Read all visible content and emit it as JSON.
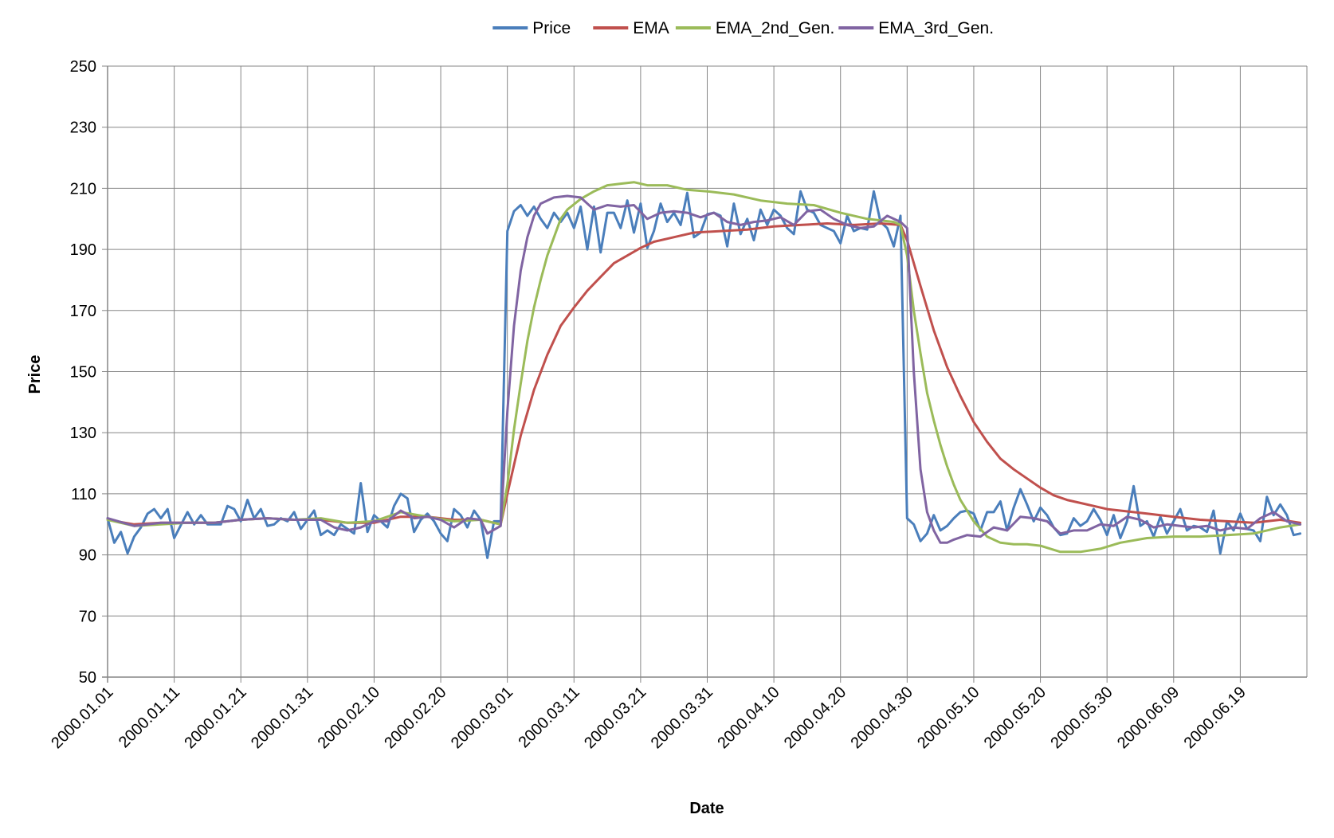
{
  "chart_data": {
    "type": "line",
    "title": "",
    "xlabel": "Date",
    "ylabel": "Price",
    "ylim": [
      50,
      250
    ],
    "y_ticks": [
      50,
      70,
      90,
      110,
      130,
      150,
      170,
      190,
      210,
      230,
      250
    ],
    "x_tick_labels": [
      "2000.01.01",
      "2000.01.11",
      "2000.01.21",
      "2000.01.31",
      "2000.02.10",
      "2000.02.20",
      "2000.03.01",
      "2000.03.11",
      "2000.03.21",
      "2000.03.31",
      "2000.04.10",
      "2000.04.20",
      "2000.04.30",
      "2000.05.10",
      "2000.05.20",
      "2000.05.30",
      "2000.06.09",
      "2000.06.19"
    ],
    "x_start": "2000.01.01",
    "x_end": "2000.06.28",
    "grid": true,
    "legend_position": "top",
    "series": [
      {
        "name": "Price",
        "color": "#4a7ebb",
        "x": [
          "2000.01.01",
          "2000.01.02",
          "2000.01.03",
          "2000.01.04",
          "2000.01.05",
          "2000.01.06",
          "2000.01.07",
          "2000.01.08",
          "2000.01.09",
          "2000.01.10",
          "2000.01.11",
          "2000.01.13",
          "2000.01.14",
          "2000.01.15",
          "2000.01.16",
          "2000.01.17",
          "2000.01.18",
          "2000.01.19",
          "2000.01.20",
          "2000.01.21",
          "2000.01.22",
          "2000.01.23",
          "2000.01.24",
          "2000.01.25",
          "2000.01.26",
          "2000.01.27",
          "2000.01.28",
          "2000.01.29",
          "2000.01.30",
          "2000.01.31",
          "2000.02.01",
          "2000.02.02",
          "2000.02.03",
          "2000.02.04",
          "2000.02.05",
          "2000.02.06",
          "2000.02.07",
          "2000.02.08",
          "2000.02.09",
          "2000.02.10",
          "2000.02.11",
          "2000.02.12",
          "2000.02.13",
          "2000.02.14",
          "2000.02.15",
          "2000.02.16",
          "2000.02.17",
          "2000.02.18",
          "2000.02.19",
          "2000.02.20",
          "2000.02.21",
          "2000.02.22",
          "2000.02.23",
          "2000.02.24",
          "2000.02.25",
          "2000.02.26",
          "2000.02.27",
          "2000.02.28",
          "2000.02.29",
          "2000.03.01",
          "2000.03.02",
          "2000.03.03",
          "2000.03.04",
          "2000.03.05",
          "2000.03.06",
          "2000.03.07",
          "2000.03.08",
          "2000.03.09",
          "2000.03.10",
          "2000.03.11",
          "2000.03.12",
          "2000.03.13",
          "2000.03.14",
          "2000.03.15",
          "2000.03.16",
          "2000.03.17",
          "2000.03.18",
          "2000.03.19",
          "2000.03.20",
          "2000.03.21",
          "2000.03.22",
          "2000.03.23",
          "2000.03.24",
          "2000.03.25",
          "2000.03.26",
          "2000.03.27",
          "2000.03.28",
          "2000.03.29",
          "2000.03.30",
          "2000.03.31",
          "2000.04.01",
          "2000.04.02",
          "2000.04.03",
          "2000.04.04",
          "2000.04.05",
          "2000.04.06",
          "2000.04.07",
          "2000.04.08",
          "2000.04.09",
          "2000.04.10",
          "2000.04.11",
          "2000.04.12",
          "2000.04.13",
          "2000.04.14",
          "2000.04.15",
          "2000.04.16",
          "2000.04.17",
          "2000.04.18",
          "2000.04.19",
          "2000.04.20",
          "2000.04.21",
          "2000.04.22",
          "2000.04.23",
          "2000.04.24",
          "2000.04.25",
          "2000.04.26",
          "2000.04.27",
          "2000.04.28",
          "2000.04.29",
          "2000.04.30",
          "2000.05.01",
          "2000.05.02",
          "2000.05.03",
          "2000.05.04",
          "2000.05.05",
          "2000.05.06",
          "2000.05.07",
          "2000.05.08",
          "2000.05.09",
          "2000.05.10",
          "2000.05.11",
          "2000.05.12",
          "2000.05.13",
          "2000.05.14",
          "2000.05.15",
          "2000.05.16",
          "2000.05.17",
          "2000.05.18",
          "2000.05.19",
          "2000.05.20",
          "2000.05.21",
          "2000.05.22",
          "2000.05.23",
          "2000.05.24",
          "2000.05.25",
          "2000.05.26",
          "2000.05.27",
          "2000.05.28",
          "2000.05.29",
          "2000.05.30",
          "2000.05.31",
          "2000.06.01",
          "2000.06.02",
          "2000.06.03",
          "2000.06.04",
          "2000.06.05",
          "2000.06.06",
          "2000.06.07",
          "2000.06.08",
          "2000.06.09",
          "2000.06.10",
          "2000.06.11",
          "2000.06.12",
          "2000.06.13",
          "2000.06.14",
          "2000.06.15",
          "2000.06.16",
          "2000.06.17",
          "2000.06.18",
          "2000.06.19",
          "2000.06.20",
          "2000.06.21",
          "2000.06.22",
          "2000.06.23",
          "2000.06.24",
          "2000.06.25",
          "2000.06.26",
          "2000.06.27",
          "2000.06.28"
        ],
        "values": [
          102,
          94,
          97.5,
          90.5,
          96,
          99,
          103.5,
          105,
          102,
          105,
          95.5,
          104,
          100,
          103,
          100,
          100,
          100,
          106,
          105,
          101,
          108,
          102,
          105,
          99.5,
          100,
          102,
          101,
          104,
          98.5,
          101.5,
          104.5,
          96.5,
          98,
          96.5,
          100,
          98.5,
          97,
          113.5,
          97.5,
          103,
          101,
          99,
          106,
          110,
          108.5,
          97.5,
          101.5,
          103.5,
          101,
          97,
          94.5,
          105,
          103,
          99,
          104.5,
          101.5,
          89,
          101,
          101,
          196,
          202.5,
          204.5,
          201,
          204,
          200,
          197,
          202,
          199,
          202,
          197,
          204,
          190,
          204,
          189,
          202,
          202,
          197,
          206,
          195.5,
          205,
          190.5,
          196,
          205,
          199,
          202,
          198,
          208.5,
          194,
          195.5,
          201.5,
          202,
          201,
          191,
          205,
          195,
          200,
          193,
          203,
          198,
          203,
          201,
          197,
          195,
          209,
          203,
          202,
          198,
          197,
          196,
          192,
          201,
          196,
          197,
          196.5,
          209,
          199,
          197,
          191,
          201,
          102,
          100,
          94.5,
          97,
          103,
          98,
          99.5,
          102,
          104,
          104.5,
          103.5,
          98,
          104,
          104,
          107.5,
          98,
          105.5,
          111.5,
          106.5,
          101,
          105.5,
          103,
          99,
          96.5,
          97,
          102,
          99.5,
          101,
          105,
          101.5,
          96.5,
          103,
          95.5,
          101,
          112.5,
          99.5,
          101,
          96,
          102.5,
          97,
          101,
          105,
          98,
          99.5,
          99,
          97.5,
          104.5,
          90.5,
          101,
          98,
          103.5,
          98.5,
          98,
          94.5,
          109,
          103,
          106.5,
          103,
          96.5,
          97
        ]
      },
      {
        "name": "EMA",
        "color": "#c0504d",
        "x": [
          "2000.01.01",
          "2000.01.05",
          "2000.01.09",
          "2000.01.13",
          "2000.01.17",
          "2000.01.21",
          "2000.01.25",
          "2000.01.29",
          "2000.02.02",
          "2000.02.06",
          "2000.02.10",
          "2000.02.14",
          "2000.02.18",
          "2000.02.22",
          "2000.02.26",
          "2000.02.29",
          "2000.03.01",
          "2000.03.03",
          "2000.03.05",
          "2000.03.07",
          "2000.03.09",
          "2000.03.11",
          "2000.03.13",
          "2000.03.15",
          "2000.03.17",
          "2000.03.19",
          "2000.03.21",
          "2000.03.23",
          "2000.03.25",
          "2000.03.27",
          "2000.03.29",
          "2000.04.02",
          "2000.04.06",
          "2000.04.10",
          "2000.04.14",
          "2000.04.18",
          "2000.04.22",
          "2000.04.26",
          "2000.04.29",
          "2000.04.30",
          "2000.05.02",
          "2000.05.04",
          "2000.05.06",
          "2000.05.08",
          "2000.05.10",
          "2000.05.12",
          "2000.05.14",
          "2000.05.16",
          "2000.05.18",
          "2000.05.20",
          "2000.05.22",
          "2000.05.24",
          "2000.05.26",
          "2000.05.28",
          "2000.05.30",
          "2000.06.01",
          "2000.06.05",
          "2000.06.09",
          "2000.06.13",
          "2000.06.17",
          "2000.06.21",
          "2000.06.25",
          "2000.06.28"
        ],
        "values": [
          101.5,
          100,
          100.5,
          100.5,
          100.5,
          101.5,
          102,
          101.5,
          101.5,
          100.5,
          100.5,
          102.5,
          102.5,
          101.5,
          101.5,
          100,
          110,
          129,
          144,
          155.5,
          165,
          171,
          176.5,
          181,
          185.5,
          188,
          190.5,
          192.5,
          193.5,
          194.5,
          195.5,
          196,
          196.5,
          197.5,
          198,
          198.5,
          198,
          198.5,
          198,
          193,
          178,
          163.5,
          151.5,
          142,
          133.5,
          127,
          121.5,
          118,
          115,
          112,
          109.5,
          108,
          107,
          106,
          105,
          104.5,
          103.5,
          102.5,
          101.5,
          101,
          100.5,
          101.5,
          100.5
        ]
      },
      {
        "name": "EMA_2nd_Gen.",
        "color": "#9bbb59",
        "x": [
          "2000.01.01",
          "2000.01.05",
          "2000.01.09",
          "2000.01.13",
          "2000.01.17",
          "2000.01.21",
          "2000.01.25",
          "2000.01.29",
          "2000.02.02",
          "2000.02.06",
          "2000.02.10",
          "2000.02.14",
          "2000.02.18",
          "2000.02.22",
          "2000.02.26",
          "2000.02.29",
          "2000.03.01",
          "2000.03.02",
          "2000.03.03",
          "2000.03.04",
          "2000.03.05",
          "2000.03.06",
          "2000.03.07",
          "2000.03.08",
          "2000.03.09",
          "2000.03.10",
          "2000.03.12",
          "2000.03.14",
          "2000.03.16",
          "2000.03.18",
          "2000.03.20",
          "2000.03.22",
          "2000.03.25",
          "2000.03.28",
          "2000.03.31",
          "2000.04.04",
          "2000.04.08",
          "2000.04.12",
          "2000.04.16",
          "2000.04.20",
          "2000.04.24",
          "2000.04.28",
          "2000.04.29",
          "2000.04.30",
          "2000.05.01",
          "2000.05.02",
          "2000.05.03",
          "2000.05.04",
          "2000.05.05",
          "2000.05.06",
          "2000.05.07",
          "2000.05.08",
          "2000.05.10",
          "2000.05.12",
          "2000.05.14",
          "2000.05.16",
          "2000.05.18",
          "2000.05.20",
          "2000.05.23",
          "2000.05.26",
          "2000.05.29",
          "2000.06.01",
          "2000.06.05",
          "2000.06.09",
          "2000.06.13",
          "2000.06.17",
          "2000.06.21",
          "2000.06.25",
          "2000.06.28"
        ],
        "values": [
          101.5,
          99.5,
          100,
          100.5,
          100.5,
          101.5,
          102,
          101.5,
          102,
          100.5,
          101,
          104,
          102.5,
          101,
          101.5,
          100,
          113,
          131,
          146,
          160,
          171,
          180,
          188,
          194,
          200,
          203,
          206.5,
          209,
          211,
          211.5,
          212,
          211,
          211,
          209.5,
          209,
          208,
          206,
          205,
          204.5,
          202,
          200,
          199,
          198,
          188,
          170,
          156,
          143,
          134,
          126,
          119,
          113,
          108,
          101,
          96,
          94,
          93.5,
          93.5,
          93,
          91,
          91,
          92,
          94,
          95.5,
          96,
          96,
          96.5,
          97,
          99,
          100
        ]
      },
      {
        "name": "EMA_3rd_Gen.",
        "color": "#8064a2",
        "x": [
          "2000.01.01",
          "2000.01.05",
          "2000.01.09",
          "2000.01.13",
          "2000.01.17",
          "2000.01.21",
          "2000.01.25",
          "2000.01.29",
          "2000.02.02",
          "2000.02.04",
          "2000.02.06",
          "2000.02.08",
          "2000.02.10",
          "2000.02.12",
          "2000.02.14",
          "2000.02.16",
          "2000.02.18",
          "2000.02.20",
          "2000.02.22",
          "2000.02.24",
          "2000.02.26",
          "2000.02.27",
          "2000.02.29",
          "2000.03.01",
          "2000.03.02",
          "2000.03.03",
          "2000.03.04",
          "2000.03.05",
          "2000.03.06",
          "2000.03.08",
          "2000.03.10",
          "2000.03.12",
          "2000.03.14",
          "2000.03.16",
          "2000.03.18",
          "2000.03.20",
          "2000.03.22",
          "2000.03.24",
          "2000.03.26",
          "2000.03.28",
          "2000.03.30",
          "2000.04.01",
          "2000.04.03",
          "2000.04.05",
          "2000.04.07",
          "2000.04.09",
          "2000.04.11",
          "2000.04.13",
          "2000.04.15",
          "2000.04.17",
          "2000.04.19",
          "2000.04.21",
          "2000.04.23",
          "2000.04.25",
          "2000.04.27",
          "2000.04.29",
          "2000.04.30",
          "2000.05.01",
          "2000.05.02",
          "2000.05.03",
          "2000.05.04",
          "2000.05.05",
          "2000.05.06",
          "2000.05.07",
          "2000.05.09",
          "2000.05.11",
          "2000.05.13",
          "2000.05.15",
          "2000.05.17",
          "2000.05.19",
          "2000.05.21",
          "2000.05.23",
          "2000.05.25",
          "2000.05.27",
          "2000.05.29",
          "2000.05.31",
          "2000.06.02",
          "2000.06.04",
          "2000.06.06",
          "2000.06.08",
          "2000.06.10",
          "2000.06.12",
          "2000.06.14",
          "2000.06.16",
          "2000.06.18",
          "2000.06.20",
          "2000.06.22",
          "2000.06.24",
          "2000.06.26",
          "2000.06.28"
        ],
        "values": [
          102,
          99.5,
          100.5,
          100.5,
          100.5,
          101.5,
          102,
          101.5,
          101.5,
          99,
          98,
          99,
          101,
          101,
          104.5,
          102,
          102.5,
          101.5,
          99,
          102,
          101.5,
          97,
          99.5,
          137,
          165,
          183,
          194,
          201,
          205,
          207,
          207.5,
          207,
          203,
          204.5,
          204,
          204.5,
          200,
          202,
          202.5,
          202,
          200.5,
          202,
          199,
          198,
          199,
          199.5,
          200.5,
          198,
          202.5,
          203,
          200,
          198,
          197,
          197.5,
          201,
          199,
          197,
          150,
          118,
          104,
          98,
          94,
          94,
          95,
          96.5,
          96,
          99,
          98,
          102.5,
          102,
          101,
          97,
          98,
          98,
          100,
          99.5,
          102.5,
          101.5,
          99,
          100,
          99.5,
          99,
          99.5,
          98,
          99,
          98.5,
          102,
          104,
          101,
          100
        ]
      }
    ]
  }
}
